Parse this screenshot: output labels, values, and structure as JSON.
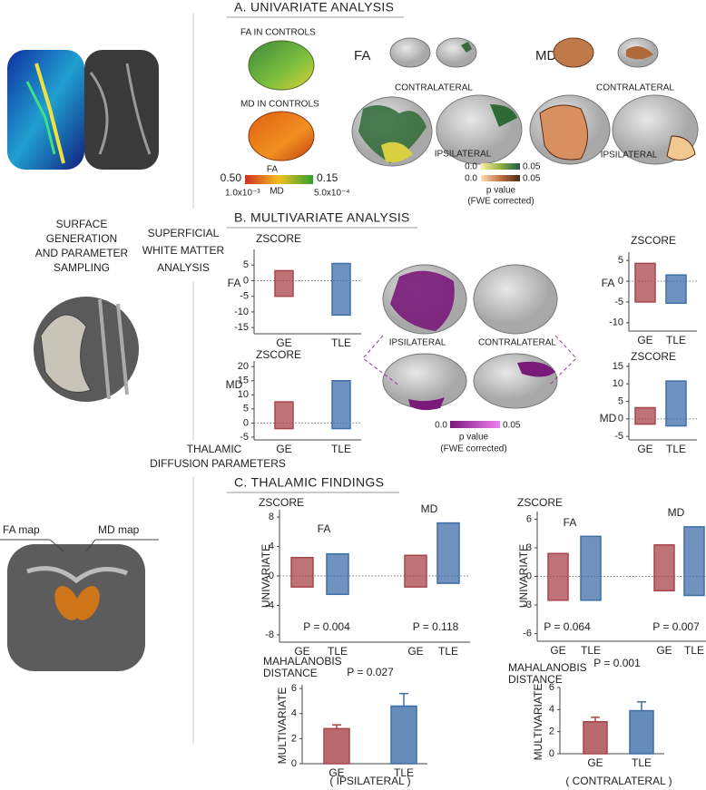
{
  "left": {
    "surface": [
      "SURFACE",
      "GENERATION",
      "AND PARAMETER",
      "SAMPLING"
    ],
    "superficial": [
      "SUPERFICIAL",
      "WHITE MATTER",
      "ANALYSIS"
    ],
    "thalamic": [
      "THALAMIC",
      "DIFFUSION PARAMETERS"
    ],
    "fa_map": "FA map",
    "md_map": "MD map"
  },
  "panel_a": {
    "title": "A. UNIVARIATE ANALYSIS",
    "fa_controls": "FA IN CONTROLS",
    "md_controls": "MD IN CONTROLS",
    "fa": "FA",
    "md": "MD",
    "contralateral": "CONTRALATERAL",
    "ipsilateral": "IPSILATERAL",
    "scale": {
      "fa_low": "0.50",
      "fa_label": "FA",
      "fa_high": "0.15",
      "md_low": "1.0x10⁻³",
      "md_label": "MD",
      "md_high": "5.0x10⁻⁴"
    },
    "pscale": {
      "fa_low": "0.0",
      "fa_high": "0.05",
      "md_low": "0.0",
      "md_high": "0.05",
      "label": "p value",
      "note": "(FWE corrected)"
    }
  },
  "panel_b": {
    "title": "B. MULTIVARIATE ANALYSIS",
    "ipsilateral": "IPSILATERAL",
    "contralateral": "CONTRALATERAL",
    "pscale": {
      "low": "0.0",
      "high": "0.05",
      "label": "p value",
      "note": "(FWE corrected)"
    }
  },
  "panel_c": {
    "title": "C. THALAMIC FINDINGS"
  },
  "charts": [
    {
      "type": "box",
      "ylabel": "ZSCORE",
      "row_label": "FA",
      "categories": [
        "GE",
        "TLE"
      ],
      "colors": [
        "#a8454a",
        "#3f6fa8"
      ],
      "low": [
        -5,
        -11
      ],
      "high": [
        3.2,
        5.5
      ],
      "ylim": [
        -17,
        10
      ],
      "yticks": [
        5,
        0,
        -5,
        -10,
        -15
      ]
    },
    {
      "type": "box",
      "ylabel": "ZSCORE",
      "row_label": "MD",
      "categories": [
        "GE",
        "TLE"
      ],
      "colors": [
        "#a8454a",
        "#3f6fa8"
      ],
      "low": [
        -2,
        -2
      ],
      "high": [
        7.5,
        15
      ],
      "ylim": [
        -6,
        22
      ],
      "yticks": [
        20,
        15,
        10,
        5,
        0,
        -5
      ]
    },
    {
      "type": "box",
      "ylabel": "ZSCORE",
      "row_label": "FA",
      "categories": [
        "GE",
        "TLE"
      ],
      "colors": [
        "#a8454a",
        "#3f6fa8"
      ],
      "low": [
        -5,
        -5.3
      ],
      "high": [
        4.3,
        1.5
      ],
      "ylim": [
        -12,
        7
      ],
      "yticks": [
        5,
        0,
        -5,
        -10
      ]
    },
    {
      "type": "box",
      "ylabel": "ZSCORE",
      "row_label": "MD",
      "categories": [
        "GE",
        "TLE"
      ],
      "colors": [
        "#a8454a",
        "#3f6fa8"
      ],
      "low": [
        -1.5,
        -2
      ],
      "high": [
        3.2,
        10.8
      ],
      "ylim": [
        -6,
        16
      ],
      "yticks": [
        15,
        10,
        5,
        0,
        -5
      ]
    },
    {
      "type": "box",
      "ylabel": "ZSCORE",
      "axis_label": "UNIVARIATE",
      "groups": [
        "FA",
        "MD"
      ],
      "p_values": [
        "P = 0.004",
        "P = 0.118"
      ],
      "categories": [
        "GE",
        "TLE",
        "GE",
        "TLE"
      ],
      "colors": [
        "#a8454a",
        "#3f6fa8",
        "#a8454a",
        "#3f6fa8"
      ],
      "low": [
        -1.5,
        -2.5,
        -1.5,
        -1
      ],
      "high": [
        2.5,
        3,
        2.8,
        7.2
      ],
      "ylim": [
        -9,
        9
      ],
      "yticks": [
        8,
        4,
        0,
        -4,
        -8
      ]
    },
    {
      "type": "box",
      "ylabel": "ZSCORE",
      "axis_label": "UNIVARIATE",
      "groups": [
        "FA",
        "MD"
      ],
      "p_values": [
        "P = 0.064",
        "P = 0.007"
      ],
      "categories": [
        "GE",
        "TLE",
        "GE",
        "TLE"
      ],
      "colors": [
        "#a8454a",
        "#3f6fa8",
        "#a8454a",
        "#3f6fa8"
      ],
      "low": [
        -2.5,
        -2.5,
        -1.5,
        -2
      ],
      "high": [
        2.4,
        4.2,
        3.3,
        5.2
      ],
      "ylim": [
        -6.8,
        6.8
      ],
      "yticks": [
        6,
        3,
        0,
        -3,
        -6
      ]
    },
    {
      "type": "bar",
      "title": [
        "MAHALANOBIS",
        "DISTANCE"
      ],
      "axis_label": "MULTIVARIATE",
      "p_value": "P = 0.027",
      "xlabel": "( IPSILATERAL )",
      "categories": [
        "GE",
        "TLE"
      ],
      "colors": [
        "#a8454a",
        "#3f6fa8"
      ],
      "values": [
        2.8,
        4.6
      ],
      "errors": [
        0.3,
        1.0
      ],
      "ylim": [
        0,
        6.3
      ],
      "yticks": [
        0,
        2,
        4,
        6
      ]
    },
    {
      "type": "bar",
      "title": [
        "MAHALANOBIS",
        "DISTANCE"
      ],
      "axis_label": "MULTIVARIATE",
      "p_value": "P = 0.001",
      "xlabel": "( CONTRALATERAL )",
      "categories": [
        "GE",
        "TLE"
      ],
      "colors": [
        "#a8454a",
        "#3f6fa8"
      ],
      "values": [
        2.9,
        3.9
      ],
      "errors": [
        0.4,
        0.8
      ],
      "ylim": [
        0,
        6
      ],
      "yticks": [
        0,
        2,
        4,
        6
      ]
    }
  ]
}
